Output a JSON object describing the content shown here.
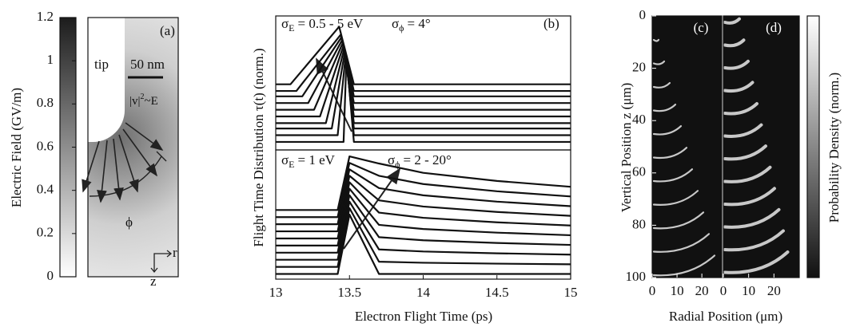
{
  "panel_a": {
    "label": "(a)",
    "tip": "tip",
    "scale_bar": "50 nm",
    "velocity": {
      "main": "|v|",
      "sup": "2",
      "rest": "~E"
    },
    "angle": "ϕ",
    "r": "r",
    "z": "z"
  },
  "chart_data": [
    {
      "type": "colorbar",
      "ylabel": "Electric Field (GV/m)",
      "ylim": [
        0,
        1.2
      ],
      "yticks": [
        0,
        0.2,
        0.4,
        0.6,
        0.8,
        1,
        1.2
      ],
      "colors": [
        "#ffffff",
        "#1c1c1c"
      ]
    },
    {
      "type": "line",
      "ylabel": "Flight Time Distribution τ(t) (norm.)",
      "color": "#111111",
      "xlim": [
        13,
        15
      ],
      "ylim": [
        0,
        1
      ],
      "annotations": [
        {
          "main": "σ",
          "sub": "E",
          "rest": "= 0.5 - 5 eV"
        },
        {
          "main": "σ",
          "sub": "ϕ",
          "rest": "= 4°"
        },
        "(b)"
      ],
      "series": [
        {
          "x": [
            13,
            13.46,
            13.48,
            13.53,
            15
          ],
          "values": [
            0.06,
            0.06,
            0.7,
            0.06,
            0.06
          ]
        },
        {
          "x": [
            13,
            13.42,
            13.475,
            13.53,
            15
          ],
          "values": [
            0.11,
            0.11,
            0.72,
            0.11,
            0.11
          ]
        },
        {
          "x": [
            13,
            13.38,
            13.47,
            13.53,
            15
          ],
          "values": [
            0.16,
            0.16,
            0.74,
            0.16,
            0.16
          ]
        },
        {
          "x": [
            13,
            13.34,
            13.465,
            13.53,
            15
          ],
          "values": [
            0.2,
            0.2,
            0.76,
            0.2,
            0.2
          ]
        },
        {
          "x": [
            13,
            13.3,
            13.46,
            13.53,
            15
          ],
          "values": [
            0.25,
            0.25,
            0.78,
            0.25,
            0.25
          ]
        },
        {
          "x": [
            13,
            13.26,
            13.455,
            13.53,
            15
          ],
          "values": [
            0.3,
            0.3,
            0.8,
            0.3,
            0.3
          ]
        },
        {
          "x": [
            13,
            13.22,
            13.45,
            13.53,
            15
          ],
          "values": [
            0.35,
            0.35,
            0.82,
            0.35,
            0.35
          ]
        },
        {
          "x": [
            13,
            13.18,
            13.445,
            13.53,
            15
          ],
          "values": [
            0.4,
            0.4,
            0.84,
            0.4,
            0.4
          ]
        },
        {
          "x": [
            13,
            13.14,
            13.44,
            13.53,
            15
          ],
          "values": [
            0.44,
            0.44,
            0.86,
            0.44,
            0.44
          ]
        },
        {
          "x": [
            13,
            13.1,
            13.43,
            13.53,
            15
          ],
          "values": [
            0.49,
            0.49,
            0.92,
            0.49,
            0.49
          ]
        }
      ]
    },
    {
      "type": "line",
      "xlabel": "Electron Flight Time (ps)",
      "color": "#111111",
      "xlim": [
        13,
        15
      ],
      "xticks": [
        13,
        13.5,
        14,
        14.5,
        15
      ],
      "ylim": [
        0,
        1
      ],
      "annotations": [
        {
          "main": "σ",
          "sub": "E",
          "rest": "= 1 eV"
        },
        {
          "main": "σ",
          "sub": "ϕ",
          "rest": "= 2 - 20°"
        }
      ],
      "x": [
        13,
        13.42,
        13.5,
        13.7,
        14,
        14.5,
        15
      ],
      "series": [
        {
          "values": [
            0.04,
            0.04,
            0.5,
            0.04,
            0.04,
            0.04,
            0.04
          ]
        },
        {
          "values": [
            0.095,
            0.095,
            0.55,
            0.135,
            0.127,
            0.12,
            0.115
          ]
        },
        {
          "values": [
            0.15,
            0.15,
            0.6,
            0.23,
            0.214,
            0.2,
            0.19
          ]
        },
        {
          "values": [
            0.205,
            0.205,
            0.65,
            0.325,
            0.301,
            0.28,
            0.265
          ]
        },
        {
          "values": [
            0.26,
            0.26,
            0.7,
            0.42,
            0.388,
            0.36,
            0.34
          ]
        },
        {
          "values": [
            0.315,
            0.315,
            0.75,
            0.515,
            0.475,
            0.44,
            0.415
          ]
        },
        {
          "values": [
            0.37,
            0.37,
            0.8,
            0.61,
            0.562,
            0.52,
            0.49
          ]
        },
        {
          "values": [
            0.425,
            0.425,
            0.85,
            0.705,
            0.649,
            0.6,
            0.565
          ]
        },
        {
          "values": [
            0.48,
            0.48,
            0.9,
            0.8,
            0.736,
            0.68,
            0.64
          ]
        },
        {
          "values": [
            0.535,
            0.535,
            0.95,
            0.895,
            0.823,
            0.76,
            0.715
          ]
        }
      ]
    },
    {
      "type": "image",
      "label": "(c)",
      "ylabel": "Vertical Position z (μm)",
      "xlim": [
        0,
        28
      ],
      "xticks": [
        0,
        10,
        20
      ],
      "ylim": [
        100,
        0
      ],
      "yticks": [
        0,
        20,
        40,
        60,
        80,
        100
      ]
    },
    {
      "type": "image",
      "label": "(d)",
      "xlabel": "Radial Position (μm)",
      "xlim": [
        0,
        30
      ],
      "xticks": [
        0,
        10,
        20
      ],
      "ylim": [
        100,
        0
      ]
    },
    {
      "type": "colorbar",
      "ylabel": "Probability Density (norm.)",
      "colors": [
        "#111111",
        "#ffffff"
      ]
    }
  ]
}
